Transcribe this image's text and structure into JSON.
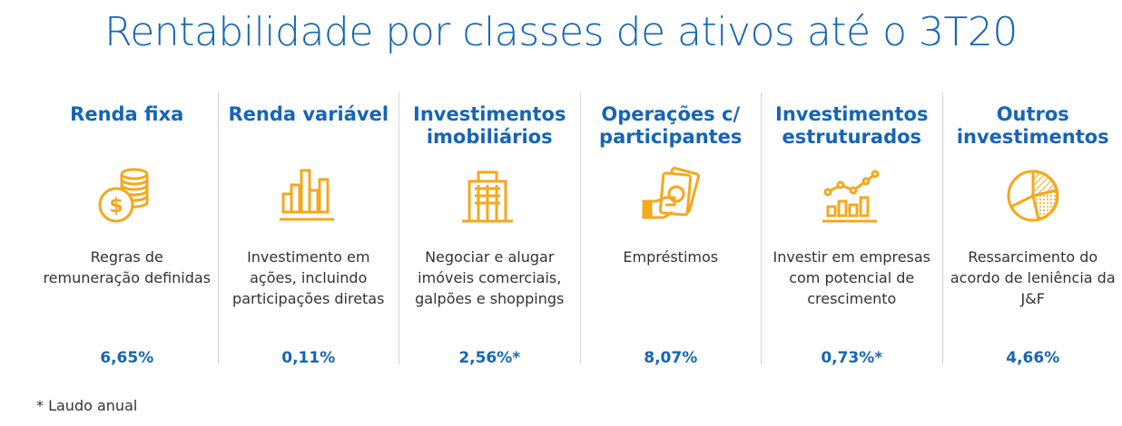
{
  "title": "Rentabilidade por classes de ativos até o 3T20",
  "colors": {
    "accent": "#1565b8",
    "icon": "#f4a81d",
    "divider": "#d6d6d6"
  },
  "columns": [
    {
      "title": "Renda fixa",
      "icon": "coins-dollar-icon",
      "description": "Regras de remuneração definidas",
      "value": "6,65%"
    },
    {
      "title": "Renda variável",
      "icon": "bar-chart-icon",
      "description": "Investimento em ações, incluindo participações diretas",
      "value": "0,11%"
    },
    {
      "title": "Investimentos imobiliários",
      "icon": "building-icon",
      "description": "Negociar e alugar imóveis comerciais, galpões e shoppings",
      "value": "2,56%*"
    },
    {
      "title": "Operações c/ participantes",
      "icon": "hand-money-icon",
      "description": "Empréstimos",
      "value": "8,07%"
    },
    {
      "title": "Investimentos estruturados",
      "icon": "growth-chart-icon",
      "description": "Investir em empresas com potencial de crescimento",
      "value": "0,73%*"
    },
    {
      "title": "Outros investimentos",
      "icon": "pie-chart-icon",
      "description": "Ressarcimento do acordo de leniência da J&F",
      "value": "4,66%"
    }
  ],
  "footnote": "* Laudo anual"
}
